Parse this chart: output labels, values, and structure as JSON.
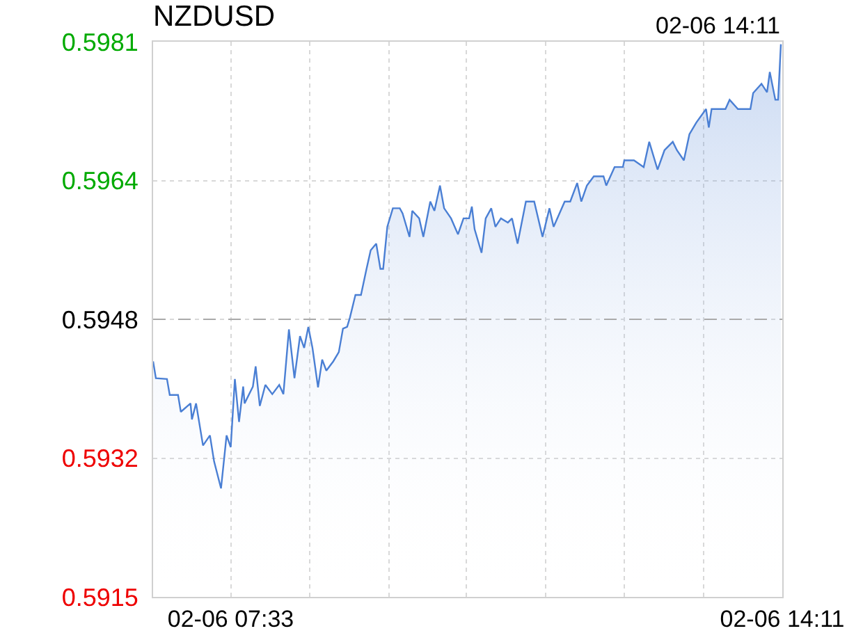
{
  "chart_data": {
    "type": "area",
    "title": "NZDUSD",
    "annotations": [
      "02-06 14:11"
    ],
    "xlim": [
      "--02-06T06:37",
      "--02-06T14:11"
    ],
    "xticks": [
      {
        "value": "--02-06T07:33",
        "label": "02-06 07:33"
      },
      {
        "value": "--02-06T08:30",
        "label": null
      },
      {
        "value": "--02-06T09:27",
        "label": null
      },
      {
        "value": "--02-06T10:23",
        "label": null
      },
      {
        "value": "--02-06T11:20",
        "label": null
      },
      {
        "value": "--02-06T12:17",
        "label": null
      },
      {
        "value": "--02-06T13:14",
        "label": null
      },
      {
        "value": "--02-06T14:11",
        "label": "02-06 14:11"
      }
    ],
    "ylim": [
      0.5915,
      0.5981
    ],
    "yticks": [
      {
        "value": 0.5915,
        "label": "0.5915"
      },
      {
        "value": 0.59315,
        "label": "0.5932"
      },
      {
        "value": 0.5948,
        "label": "0.5948"
      },
      {
        "value": 0.59645,
        "label": "0.5964"
      },
      {
        "value": 0.5981,
        "label": "0.5981"
      }
    ],
    "grid": true,
    "ref_lines": [
      {
        "axis": "y",
        "value": 0.5948,
        "color": "#aaaaaa",
        "line_style": "dashed"
      }
    ],
    "series": [
      {
        "color": "#4a7fd4",
        "x": [
          "--02-06T06:37",
          "--02-06T06:39",
          "--02-06T06:47",
          "--02-06T06:49",
          "--02-06T06:55",
          "--02-06T06:57",
          "--02-06T07:04",
          "--02-06T07:05",
          "--02-06T07:08",
          "--02-06T07:13",
          "--02-06T07:18",
          "--02-06T07:21",
          "--02-06T07:26",
          "--02-06T07:30",
          "--02-06T07:33",
          "--02-06T07:36",
          "--02-06T07:39",
          "--02-06T07:42",
          "--02-06T07:43",
          "--02-06T07:49",
          "--02-06T07:51",
          "--02-06T07:54",
          "--02-06T07:58",
          "--02-06T08:03",
          "--02-06T08:08",
          "--02-06T08:11",
          "--02-06T08:15",
          "--02-06T08:19",
          "--02-06T08:23",
          "--02-06T08:26",
          "--02-06T08:29",
          "--02-06T08:32",
          "--02-06T08:36",
          "--02-06T08:39",
          "--02-06T08:42",
          "--02-06T08:47",
          "--02-06T08:51",
          "--02-06T08:54",
          "--02-06T08:57",
          "--02-06T08:59",
          "--02-06T09:03",
          "--02-06T09:07",
          "--02-06T09:11",
          "--02-06T09:14",
          "--02-06T09:18",
          "--02-06T09:21",
          "--02-06T09:23",
          "--02-06T09:26",
          "--02-06T09:30",
          "--02-06T09:35",
          "--02-06T09:37",
          "--02-06T09:42",
          "--02-06T09:44",
          "--02-06T09:49",
          "--02-06T09:52",
          "--02-06T09:57",
          "--02-06T10:00",
          "--02-06T10:04",
          "--02-06T10:07",
          "--02-06T10:12",
          "--02-06T10:17",
          "--02-06T10:21",
          "--02-06T10:25",
          "--02-06T10:27",
          "--02-06T10:29",
          "--02-06T10:34",
          "--02-06T10:37",
          "--02-06T10:41",
          "--02-06T10:44",
          "--02-06T10:48",
          "--02-06T10:53",
          "--02-06T10:56",
          "--02-06T11:00",
          "--02-06T11:06",
          "--02-06T11:12",
          "--02-06T11:18",
          "--02-06T11:23",
          "--02-06T11:26",
          "--02-06T11:34",
          "--02-06T11:38",
          "--02-06T11:43",
          "--02-06T11:46",
          "--02-06T11:50",
          "--02-06T11:55",
          "--02-06T12:02",
          "--02-06T12:04",
          "--02-06T12:10",
          "--02-06T12:16",
          "--02-06T12:17",
          "--02-06T12:24",
          "--02-06T12:31",
          "--02-06T12:35",
          "--02-06T12:41",
          "--02-06T12:46",
          "--02-06T12:52",
          "--02-06T12:55",
          "--02-06T13:00",
          "--02-06T13:04",
          "--02-06T13:09",
          "--02-06T13:16",
          "--02-06T13:18",
          "--02-06T13:20",
          "--02-06T13:30",
          "--02-06T13:33",
          "--02-06T13:39",
          "--02-06T13:48",
          "--02-06T13:50",
          "--02-06T13:56",
          "--02-06T14:00",
          "--02-06T14:02",
          "--02-06T14:06",
          "--02-06T14:08",
          "--02-06T14:10"
        ],
        "values": [
          0.5943,
          0.5941,
          0.59409,
          0.5939,
          0.5939,
          0.5937,
          0.5938,
          0.59361,
          0.5938,
          0.5933,
          0.59342,
          0.59311,
          0.59279,
          0.59342,
          0.59328,
          0.59409,
          0.59358,
          0.594,
          0.5938,
          0.594,
          0.59424,
          0.59377,
          0.59402,
          0.59391,
          0.59402,
          0.59391,
          0.59468,
          0.5941,
          0.5946,
          0.59446,
          0.59471,
          0.59446,
          0.59399,
          0.59432,
          0.59419,
          0.5943,
          0.59441,
          0.59469,
          0.59471,
          0.59482,
          0.59509,
          0.59509,
          0.5954,
          0.59562,
          0.5957,
          0.5954,
          0.5954,
          0.5959,
          0.59612,
          0.59612,
          0.59606,
          0.59578,
          0.59609,
          0.596,
          0.59578,
          0.5962,
          0.59609,
          0.59639,
          0.59612,
          0.596,
          0.59581,
          0.596,
          0.596,
          0.59614,
          0.59587,
          0.59559,
          0.596,
          0.59612,
          0.5959,
          0.596,
          0.59595,
          0.596,
          0.5957,
          0.5962,
          0.5962,
          0.59578,
          0.59612,
          0.5959,
          0.5962,
          0.5962,
          0.59642,
          0.5962,
          0.59639,
          0.5965,
          0.5965,
          0.59639,
          0.59661,
          0.59661,
          0.59669,
          0.59669,
          0.59661,
          0.59691,
          0.59658,
          0.59681,
          0.59691,
          0.59681,
          0.59669,
          0.597,
          0.59714,
          0.5973,
          0.59708,
          0.5973,
          0.5973,
          0.59741,
          0.5973,
          0.5973,
          0.59749,
          0.5976,
          0.5975,
          0.59774,
          0.59741,
          0.59741,
          0.59807
        ]
      }
    ]
  }
}
